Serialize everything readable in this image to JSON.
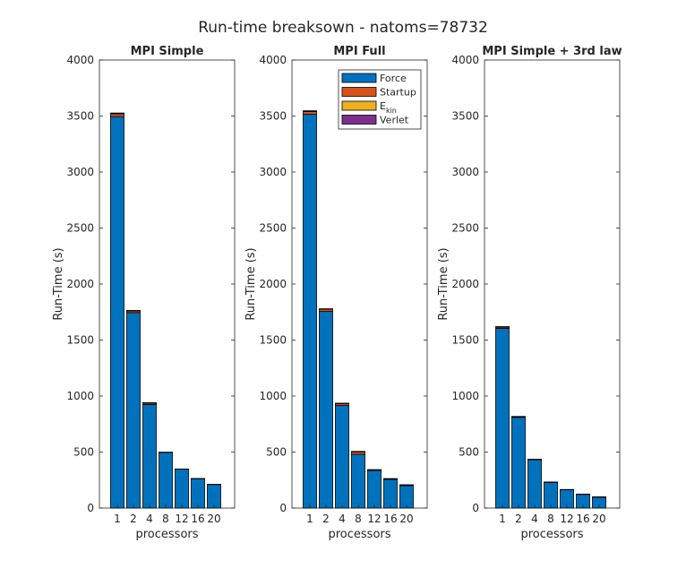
{
  "figure": {
    "title": "Run-time breaksown - natoms=78732"
  },
  "legend": {
    "placement": "top-right of middle panel",
    "entries": [
      {
        "label": "Force",
        "color": "#0072BD"
      },
      {
        "label": "Startup",
        "color": "#D95319"
      },
      {
        "label": "E",
        "sub": "kin",
        "color": "#EDB120"
      },
      {
        "label": "Verlet",
        "color": "#7E2F8E"
      }
    ]
  },
  "chart_data": [
    {
      "type": "bar",
      "stacked": true,
      "title": "MPI Simple",
      "xlabel": "processors",
      "ylabel": "Run-Time (s)",
      "ylim": [
        0,
        4000
      ],
      "yticks": [
        0,
        500,
        1000,
        1500,
        2000,
        2500,
        3000,
        3500,
        4000
      ],
      "categories": [
        "1",
        "2",
        "4",
        "8",
        "12",
        "16",
        "20"
      ],
      "series": [
        {
          "name": "Force",
          "color": "#0072BD",
          "values": [
            3495,
            1745,
            925,
            497,
            347,
            262,
            210
          ]
        },
        {
          "name": "Startup",
          "color": "#D95319",
          "values": [
            25,
            15,
            12,
            0,
            0,
            0,
            0
          ]
        },
        {
          "name": "E_kin",
          "color": "#EDB120",
          "values": [
            5,
            3,
            3,
            1,
            1,
            1,
            1
          ]
        },
        {
          "name": "Verlet",
          "color": "#7E2F8E",
          "values": [
            2,
            1,
            1,
            1,
            1,
            1,
            1
          ]
        }
      ]
    },
    {
      "type": "bar",
      "stacked": true,
      "title": "MPI Full",
      "xlabel": "processors",
      "ylabel": "Run-Time (s)",
      "ylim": [
        0,
        4000
      ],
      "yticks": [
        0,
        500,
        1000,
        1500,
        2000,
        2500,
        3000,
        3500,
        4000
      ],
      "categories": [
        "1",
        "2",
        "4",
        "8",
        "12",
        "16",
        "20"
      ],
      "series": [
        {
          "name": "Force",
          "color": "#0072BD",
          "values": [
            3515,
            1755,
            915,
            480,
            335,
            255,
            200
          ]
        },
        {
          "name": "Startup",
          "color": "#D95319",
          "values": [
            25,
            20,
            17,
            22,
            5,
            5,
            5
          ]
        },
        {
          "name": "E_kin",
          "color": "#EDB120",
          "values": [
            5,
            3,
            3,
            3,
            2,
            2,
            2
          ]
        },
        {
          "name": "Verlet",
          "color": "#7E2F8E",
          "values": [
            2,
            1,
            1,
            1,
            1,
            1,
            1
          ]
        }
      ]
    },
    {
      "type": "bar",
      "stacked": true,
      "title": "MPI Simple + 3rd law",
      "xlabel": "processors",
      "ylabel": "Run-Time (s)",
      "ylim": [
        0,
        4000
      ],
      "yticks": [
        0,
        500,
        1000,
        1500,
        2000,
        2500,
        3000,
        3500,
        4000
      ],
      "categories": [
        "1",
        "2",
        "4",
        "8",
        "12",
        "16",
        "20"
      ],
      "series": [
        {
          "name": "Force",
          "color": "#0072BD",
          "values": [
            1605,
            810,
            432,
            228,
            163,
            122,
            97
          ]
        },
        {
          "name": "Startup",
          "color": "#D95319",
          "values": [
            10,
            5,
            2,
            3,
            1,
            1,
            1
          ]
        },
        {
          "name": "E_kin",
          "color": "#EDB120",
          "values": [
            3,
            2,
            1,
            1,
            1,
            1,
            1
          ]
        },
        {
          "name": "Verlet",
          "color": "#7E2F8E",
          "values": [
            2,
            1,
            1,
            1,
            1,
            1,
            1
          ]
        }
      ]
    }
  ]
}
